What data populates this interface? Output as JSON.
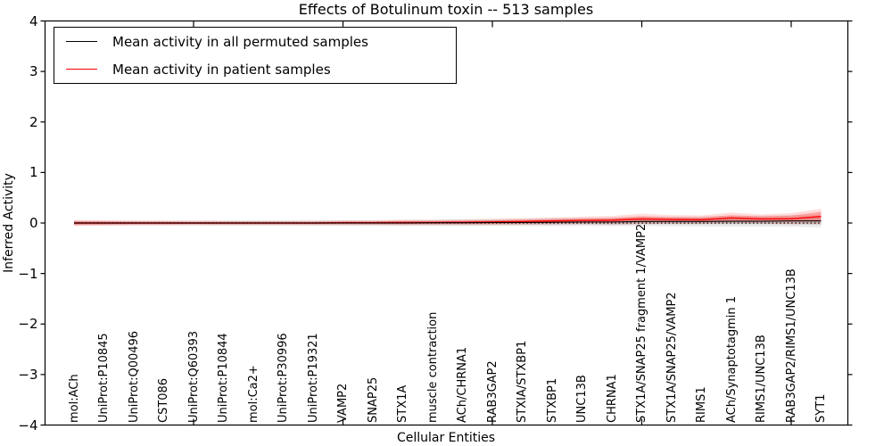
{
  "title": "Effects of Botulinum toxin -- 513 samples",
  "axes": {
    "ylabel": "Inferred Activity",
    "xlabel": "Cellular Entities",
    "ytick_labels": [
      "4",
      "3",
      "2",
      "1",
      "0",
      "−1",
      "−2",
      "−3",
      "−4"
    ],
    "ytick_values": [
      4,
      3,
      2,
      1,
      0,
      -1,
      -2,
      -3,
      -4
    ]
  },
  "legend": {
    "items": [
      {
        "label": "Mean activity in all permuted samples",
        "color": "#000000"
      },
      {
        "label": "Mean activity in patient samples",
        "color": "#ff0000"
      }
    ]
  },
  "chart_data": {
    "type": "line",
    "title": "Effects of Botulinum toxin -- 513 samples",
    "xlabel": "Cellular Entities",
    "ylabel": "Inferred Activity",
    "ylim": [
      -4,
      4
    ],
    "grid": false,
    "legend_position": "upper left",
    "zero_reference_line": 0,
    "x_major_tick_categories": [
      5,
      10,
      15,
      20,
      25
    ],
    "categories": [
      "mol:ACh",
      "UniProt:P10845",
      "UniProt:Q00496",
      "CST086",
      "UniProt:Q60393",
      "UniProt:P10844",
      "mol:Ca2+",
      "UniProt:P30996",
      "UniProt:P19321",
      "VAMP2",
      "SNAP25",
      "STX1A",
      "muscle contraction",
      "ACh/CHRNA1",
      "RAB3GAP2",
      "STXIA/STXBP1",
      "STXBP1",
      "UNC13B",
      "CHRNA1",
      "STX1A/SNAP25 fragment 1/VAMP2",
      "STX1A/SNAP25/VAMP2",
      "RIMS1",
      "ACh/Synaptotagmin 1",
      "RIMS1/UNC13B",
      "RAB3GAP2/RIMS1/UNC13B",
      "SYT1"
    ],
    "series": [
      {
        "name": "Mean activity in all permuted samples",
        "color": "#000000",
        "line_width": 1.1,
        "values": [
          0,
          0,
          0,
          0,
          0,
          0,
          0,
          0,
          0,
          0,
          0,
          0,
          0.005,
          0.005,
          0.01,
          0.01,
          0.015,
          0.02,
          0.02,
          0.03,
          0.03,
          0.03,
          0.035,
          0.035,
          0.04,
          0.04
        ],
        "band_outer_halfwidth": [
          0.05,
          0.05,
          0.05,
          0.05,
          0.05,
          0.055,
          0.055,
          0.055,
          0.06,
          0.06,
          0.06,
          0.065,
          0.065,
          0.07,
          0.07,
          0.075,
          0.08,
          0.08,
          0.085,
          0.09,
          0.095,
          0.1,
          0.105,
          0.11,
          0.115,
          0.125
        ],
        "band_inner_halfwidth": [
          0.025,
          0.025,
          0.025,
          0.025,
          0.025,
          0.03,
          0.03,
          0.03,
          0.03,
          0.03,
          0.035,
          0.035,
          0.035,
          0.04,
          0.04,
          0.04,
          0.045,
          0.045,
          0.05,
          0.05,
          0.055,
          0.055,
          0.06,
          0.06,
          0.065,
          0.07
        ],
        "band_outer_color": "rgba(130,130,130,0.16)",
        "band_inner_color": "rgba(130,130,130,0.28)"
      },
      {
        "name": "Mean activity in patient samples",
        "color": "#ff0000",
        "line_width": 1.4,
        "values": [
          0,
          0,
          0,
          0,
          0,
          0,
          0,
          0,
          0,
          0.005,
          0.005,
          0.01,
          0.01,
          0.015,
          0.02,
          0.03,
          0.04,
          0.05,
          0.055,
          0.08,
          0.07,
          0.065,
          0.1,
          0.08,
          0.085,
          0.13
        ],
        "band_outer_halfwidth": [
          0.06,
          0.05,
          0.045,
          0.045,
          0.04,
          0.04,
          0.04,
          0.04,
          0.04,
          0.045,
          0.045,
          0.05,
          0.05,
          0.055,
          0.06,
          0.065,
          0.07,
          0.075,
          0.085,
          0.105,
          0.085,
          0.085,
          0.105,
          0.09,
          0.11,
          0.15
        ],
        "band_inner_halfwidth": [
          0.035,
          0.03,
          0.025,
          0.025,
          0.02,
          0.02,
          0.02,
          0.02,
          0.02,
          0.025,
          0.025,
          0.03,
          0.03,
          0.03,
          0.035,
          0.035,
          0.04,
          0.04,
          0.045,
          0.055,
          0.045,
          0.045,
          0.055,
          0.05,
          0.06,
          0.09
        ],
        "band_outer_color": "rgba(255,60,60,0.18)",
        "band_inner_color": "rgba(255,40,40,0.32)"
      }
    ]
  }
}
